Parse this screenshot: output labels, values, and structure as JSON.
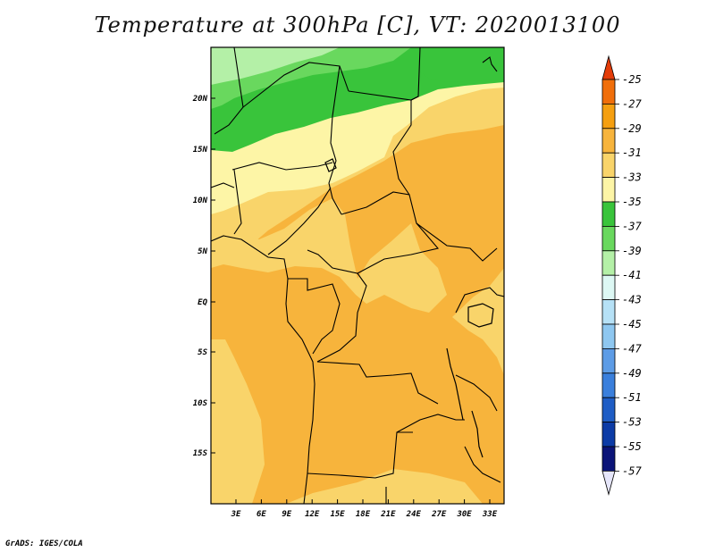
{
  "title": "Temperature at 300hPa [C], VT: 2020013100",
  "credit": "GrADS: IGES/COLA",
  "lat_labels": [
    "20N",
    "15N",
    "10N",
    "5N",
    "EQ",
    "5S",
    "10S",
    "15S"
  ],
  "lon_labels": [
    "3E",
    "6E",
    "9E",
    "12E",
    "15E",
    "18E",
    "21E",
    "24E",
    "27E",
    "30E",
    "33E"
  ],
  "colorbar": {
    "labels": [
      "-25",
      "-27",
      "-29",
      "-31",
      "-33",
      "-35",
      "-37",
      "-39",
      "-41",
      "-43",
      "-45",
      "-47",
      "-49",
      "-51",
      "-53",
      "-55",
      "-57"
    ],
    "colors": [
      "#e43c08",
      "#f06e0a",
      "#f59f10",
      "#f7b43c",
      "#f9d46a",
      "#fdf5a6",
      "#39c43b",
      "#69d85e",
      "#b4f0a7",
      "#ddf8f4",
      "#b6e1f6",
      "#8ec7f0",
      "#5d9ce6",
      "#3a7fdc",
      "#1f5dc5",
      "#0c3ba6",
      "#0b1478"
    ]
  },
  "map_colors": {
    "c29": "#f7b43c",
    "c31": "#f9d46a",
    "c33": "#fdf5a6",
    "c35": "#39c43b",
    "c37": "#69d85e",
    "c39": "#b4f0a7"
  }
}
